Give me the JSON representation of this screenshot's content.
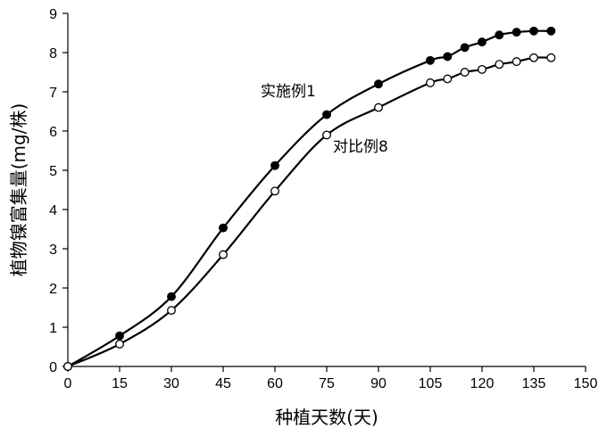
{
  "chart_data": {
    "type": "line",
    "xlabel": "种植天数(天)",
    "ylabel": "植物镍富集量(mg/株)",
    "xlim": [
      0,
      150
    ],
    "ylim": [
      0,
      9
    ],
    "xticks": [
      0,
      15,
      30,
      45,
      60,
      75,
      90,
      105,
      120,
      135,
      150
    ],
    "yticks": [
      0,
      1,
      2,
      3,
      4,
      5,
      6,
      7,
      8,
      9
    ],
    "grid": false,
    "legend": "none",
    "series": [
      {
        "name": "实施例1",
        "marker": "filled-circle",
        "color": "#000000",
        "points": [
          {
            "x": 0,
            "y": 0
          },
          {
            "x": 15,
            "y": 0.78
          },
          {
            "x": 30,
            "y": 1.78
          },
          {
            "x": 45,
            "y": 3.53
          },
          {
            "x": 60,
            "y": 5.12
          },
          {
            "x": 75,
            "y": 6.42
          },
          {
            "x": 90,
            "y": 7.2
          },
          {
            "x": 105,
            "y": 7.8
          },
          {
            "x": 110,
            "y": 7.9
          },
          {
            "x": 115,
            "y": 8.13
          },
          {
            "x": 120,
            "y": 8.27
          },
          {
            "x": 125,
            "y": 8.45
          },
          {
            "x": 130,
            "y": 8.52
          },
          {
            "x": 135,
            "y": 8.55
          },
          {
            "x": 140,
            "y": 8.55
          }
        ]
      },
      {
        "name": "对比例8",
        "marker": "open-circle",
        "color": "#000000",
        "points": [
          {
            "x": 0,
            "y": 0
          },
          {
            "x": 15,
            "y": 0.57
          },
          {
            "x": 30,
            "y": 1.43
          },
          {
            "x": 45,
            "y": 2.85
          },
          {
            "x": 60,
            "y": 4.47
          },
          {
            "x": 75,
            "y": 5.9
          },
          {
            "x": 90,
            "y": 6.6
          },
          {
            "x": 105,
            "y": 7.23
          },
          {
            "x": 110,
            "y": 7.33
          },
          {
            "x": 115,
            "y": 7.5
          },
          {
            "x": 120,
            "y": 7.57
          },
          {
            "x": 125,
            "y": 7.7
          },
          {
            "x": 130,
            "y": 7.77
          },
          {
            "x": 135,
            "y": 7.87
          },
          {
            "x": 140,
            "y": 7.87
          }
        ]
      }
    ]
  }
}
